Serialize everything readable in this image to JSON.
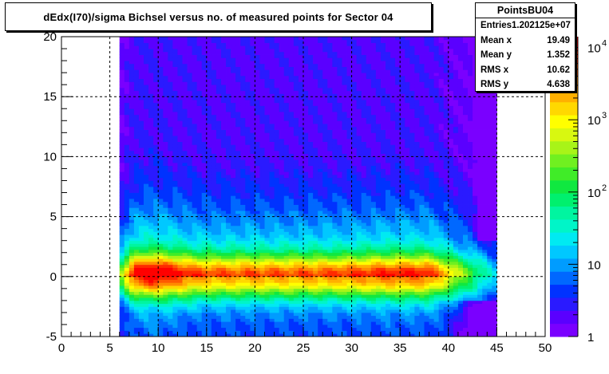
{
  "chart_data": {
    "type": "heatmap",
    "title": "dEdx(I70)/sigma Bichsel versus no. of measured points for Sector 04",
    "xlim": [
      0,
      50
    ],
    "ylim": [
      -5,
      20
    ],
    "x_ticks": [
      "0",
      "5",
      "10",
      "15",
      "20",
      "25",
      "30",
      "35",
      "40",
      "45",
      "50"
    ],
    "y_ticks": [
      "-5",
      "0",
      "5",
      "10",
      "15",
      "20"
    ],
    "z_scale": "log",
    "z_ticks": [
      {
        "label": "1",
        "exp": ""
      },
      {
        "label": "10",
        "exp": ""
      },
      {
        "label": "10",
        "exp": "2"
      },
      {
        "label": "10",
        "exp": "3"
      },
      {
        "label": "10",
        "exp": "4"
      }
    ],
    "grid": true,
    "data_x_range": [
      6,
      45
    ],
    "palette": [
      "#7a00ff",
      "#5a00ff",
      "#2a1aff",
      "#0032ff",
      "#0068ff",
      "#009cff",
      "#00c8ff",
      "#00eaf2",
      "#00f5c8",
      "#00f5a0",
      "#00f06e",
      "#10e840",
      "#40ec28",
      "#70f020",
      "#a8f418",
      "#d8f810",
      "#ffff00",
      "#ffd800",
      "#ffb000",
      "#ff8c00",
      "#ff5a00",
      "#ff2a00",
      "#ff0000"
    ]
  },
  "stats": {
    "name": "PointsBU04",
    "rows": [
      {
        "label": "Entries",
        "value": "1.202125e+07"
      },
      {
        "label": "Mean x",
        "value": "19.49"
      },
      {
        "label": "Mean y",
        "value": "1.352"
      },
      {
        "label": "RMS x",
        "value": "10.62"
      },
      {
        "label": "RMS y",
        "value": "4.638"
      }
    ]
  }
}
